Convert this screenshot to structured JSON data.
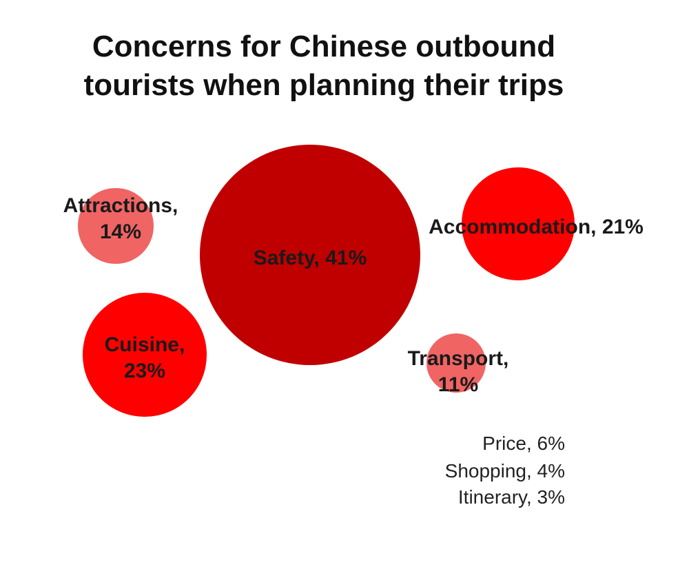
{
  "chart_data": {
    "type": "bubble",
    "title": "Concerns for Chinese outbound tourists when planning their trips",
    "values": [
      41,
      21,
      23,
      14,
      11
    ],
    "value_labels": [
      "Safety, 41%",
      "Accommodation, 21%",
      "Cuisine, 23%",
      "Attractions, 14%",
      "Transport, 11%"
    ],
    "colors": [
      "#c00000",
      "#ff0000",
      "#ff0000",
      "#f06464",
      "#f06464"
    ],
    "notes": [
      "Price, 6%",
      "Shopping, 4%",
      "Itinerary, 3%"
    ]
  }
}
